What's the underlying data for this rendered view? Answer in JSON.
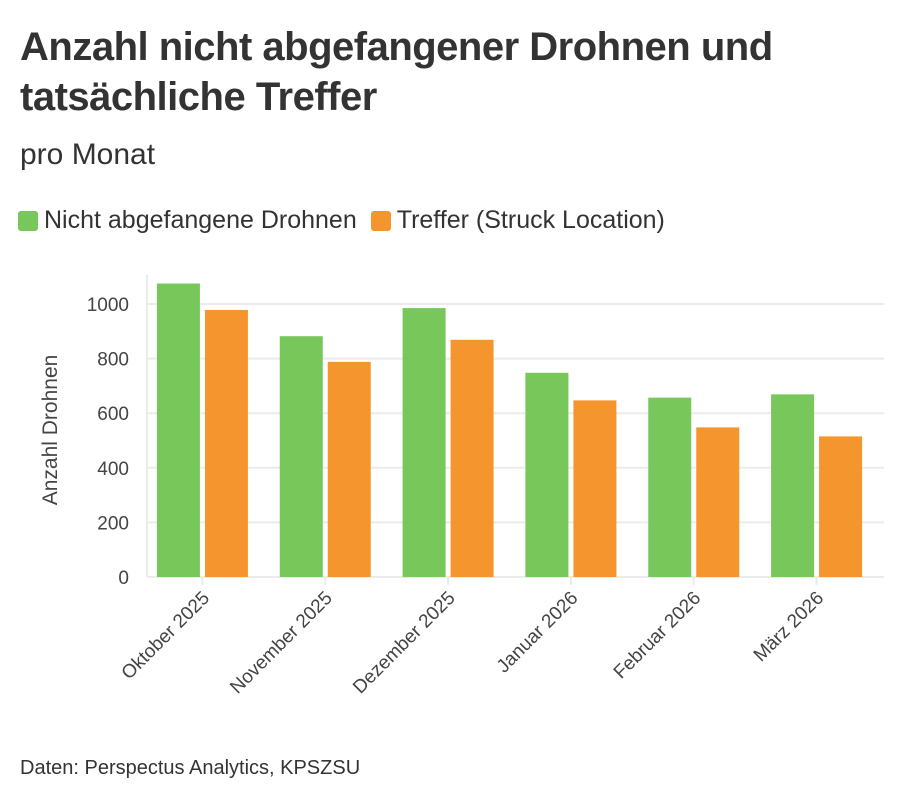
{
  "chart_data": {
    "type": "bar",
    "title": "Anzahl nicht abgefangener Drohnen und tatsächliche Treffer",
    "subtitle": "pro Monat",
    "ylabel": "Anzahl Drohnen",
    "xlabel": "",
    "ylim": [
      0,
      1100
    ],
    "yticks": [
      "0",
      "200",
      "400",
      "600",
      "800",
      "1000"
    ],
    "grid": true,
    "legend_position": "top-left",
    "categories": [
      "Oktober 2025",
      "November 2025",
      "Dezember 2025",
      "Januar 2026",
      "Februar 2026",
      "März 2026"
    ],
    "series": [
      {
        "name": "Nicht abgefangene Drohnen",
        "color": "#77c75a",
        "values": [
          1075,
          882,
          985,
          748,
          657,
          669
        ]
      },
      {
        "name": "Treffer (Struck Location)",
        "color": "#f5952d",
        "values": [
          978,
          788,
          869,
          647,
          548,
          515
        ]
      }
    ],
    "source": "Daten: Perspectus Analytics, KPSZSU"
  }
}
